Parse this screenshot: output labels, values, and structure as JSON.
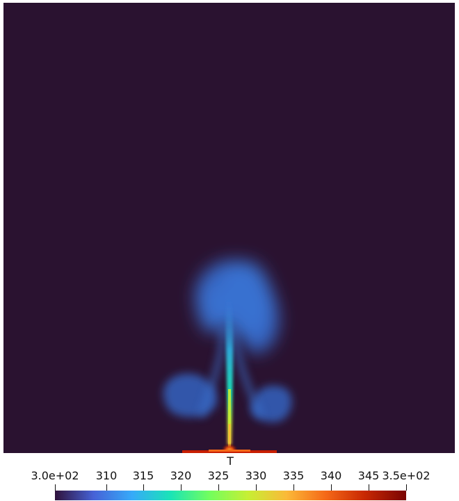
{
  "colorbar": {
    "title": "T",
    "min_label": "3.0e+02",
    "max_label": "3.5e+02",
    "ticks": [
      "310",
      "315",
      "320",
      "325",
      "330",
      "335",
      "340",
      "345"
    ],
    "colormap": "turbo",
    "colors": [
      "#30123b",
      "#4662d7",
      "#36aaf9",
      "#1ae4b6",
      "#72fe5e",
      "#c7ef34",
      "#fbb938",
      "#f56918",
      "#c92903",
      "#7a0403"
    ]
  },
  "scene": {
    "background_color": "#2a1230",
    "plume_color": "#3a78d6",
    "stem_color": "#2fb8e8",
    "hot_color": "#c71e02"
  }
}
